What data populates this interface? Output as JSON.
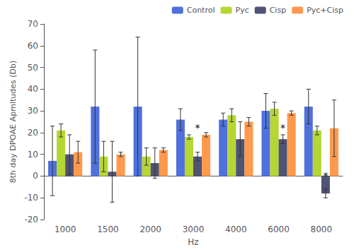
{
  "chart_data": {
    "type": "bar",
    "categories": [
      "1000",
      "1500",
      "2000",
      "3000",
      "4000",
      "6000",
      "8000"
    ],
    "series": [
      {
        "name": "Control",
        "values": [
          7,
          32,
          32,
          26,
          26,
          30,
          32
        ],
        "error": [
          16,
          26,
          32,
          5,
          3,
          8,
          8
        ]
      },
      {
        "name": "Pyc",
        "values": [
          21,
          9,
          9,
          18,
          28,
          31,
          21
        ],
        "error": [
          3,
          7,
          4,
          1,
          3,
          3,
          2
        ]
      },
      {
        "name": "Cisp",
        "values": [
          10,
          2,
          6,
          9,
          17,
          17,
          -8
        ],
        "error": [
          9,
          14,
          7,
          2,
          8,
          2,
          2
        ]
      },
      {
        "name": "Pyc+Cisp",
        "values": [
          11,
          10,
          12,
          19,
          25,
          29,
          22
        ],
        "error": [
          5,
          1,
          1,
          1,
          2,
          1,
          13
        ]
      }
    ],
    "xlabel": "Hz",
    "ylabel": "8th day DPOAE Apmltudes (Db)",
    "ylim": [
      -20,
      70
    ],
    "yticks": [
      -20,
      -10,
      0,
      10,
      20,
      30,
      40,
      50,
      60,
      70
    ],
    "grid": false,
    "legend": "upper right",
    "annotations": [
      {
        "text": "*",
        "category": "3000",
        "series": "Cisp",
        "y": 20
      },
      {
        "text": "*",
        "category": "6000",
        "series": "Cisp",
        "y": 20
      },
      {
        "text": "*",
        "category": "8000",
        "series": "Cisp",
        "y": -2
      }
    ]
  }
}
